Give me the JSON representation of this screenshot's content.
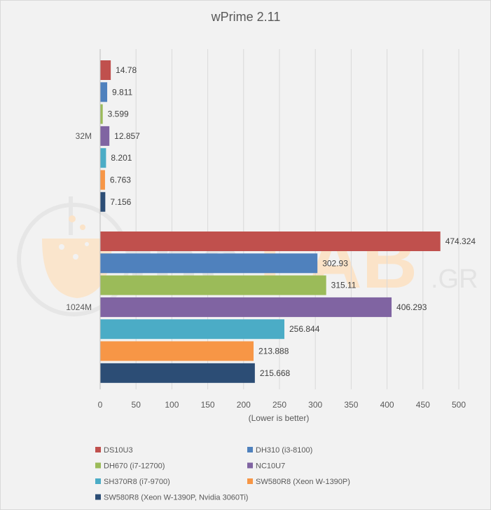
{
  "chart_data": {
    "type": "bar",
    "orientation": "horizontal",
    "title": "wPrime 2.11",
    "xlabel": "(Lower  is better)",
    "ylabel": "",
    "xlim": [
      0,
      500
    ],
    "xticks": [
      0,
      50,
      100,
      150,
      200,
      250,
      300,
      350,
      400,
      450,
      500
    ],
    "grid": "vertical",
    "legend_position": "bottom",
    "categories": [
      "32M",
      "1024M"
    ],
    "series": [
      {
        "name": "DS10U3",
        "color": "#c0504d",
        "values": [
          14.78,
          474.324
        ],
        "labels": [
          "14.78",
          "474.324"
        ]
      },
      {
        "name": "DH310 (i3-8100)",
        "color": "#4f81bd",
        "values": [
          9.811,
          302.93
        ],
        "labels": [
          "9.811",
          "302.93"
        ]
      },
      {
        "name": "DH670 (i7-12700)",
        "color": "#9bbb59",
        "values": [
          3.599,
          315.11
        ],
        "labels": [
          "3.599",
          "315.11"
        ]
      },
      {
        "name": "NC10U7",
        "color": "#8064a2",
        "values": [
          12.857,
          406.293
        ],
        "labels": [
          "12.857",
          "406.293"
        ]
      },
      {
        "name": "SH370R8 (i7-9700)",
        "color": "#4bacc6",
        "values": [
          8.201,
          256.844
        ],
        "labels": [
          "8.201",
          "256.844"
        ]
      },
      {
        "name": "SW580R8 (Xeon W-1390P)",
        "color": "#f79646",
        "values": [
          6.763,
          213.888
        ],
        "labels": [
          "6.763",
          "213.888"
        ]
      },
      {
        "name": "SW580R8 (Xeon W-1390P, Nvidia 3060Ti)",
        "color": "#2c4d75",
        "values": [
          7.156,
          215.668
        ],
        "labels": [
          "7.156",
          "215.668"
        ]
      }
    ]
  },
  "watermark": {
    "text_the": "the",
    "text_lab": "LAB",
    "text_gr": ".GR",
    "color_the": "#e3e3e3",
    "color_lab": "#fbe3c8",
    "color_flask": "#fbe3c8"
  }
}
